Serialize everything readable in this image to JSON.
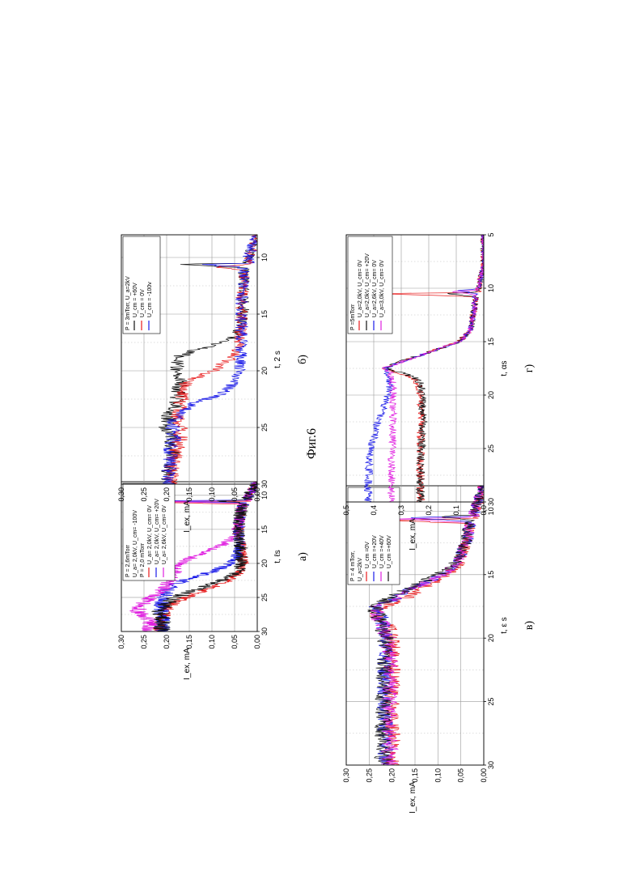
{
  "caption": "Фиг.6",
  "chart_data": [
    {
      "panel_label": "а)",
      "type": "line",
      "xlabel": "t, ℓs",
      "ylabel": "I_ex, mA",
      "xlim": [
        8,
        30
      ],
      "ylim": [
        0,
        0.3
      ],
      "xticks": [
        10,
        15,
        20,
        25,
        30
      ],
      "yticks": [
        "0,00",
        "0,05",
        "0,10",
        "0,15",
        "0,20",
        "0,25",
        "0,30"
      ],
      "grid": true,
      "legend_position": "top-left",
      "legend_header": [
        "P = 2,6mTorr",
        "U_a= 2,0kV, U_cm= -100V",
        "P = 2,0 mTorr"
      ],
      "series": [
        {
          "name": "U_a= 2,0kV, U_cm= 0V",
          "color": "#e8191a",
          "spike": 11,
          "rise": 22.5,
          "plateau": 0.215,
          "noise": 0.012,
          "x": [
            8,
            10,
            10.9,
            11,
            11.3,
            12,
            14,
            16,
            18,
            20,
            21,
            22,
            23,
            24,
            25,
            26,
            27,
            28,
            29,
            30
          ],
          "y": [
            0.0,
            0.02,
            0.02,
            0.25,
            0.03,
            0.035,
            0.04,
            0.04,
            0.035,
            0.03,
            0.035,
            0.05,
            0.08,
            0.12,
            0.16,
            0.19,
            0.205,
            0.21,
            0.215,
            0.215
          ]
        },
        {
          "name": "U_a= 2,0kV, U_cm= +20V",
          "color": "#1a1ae8",
          "spike": 10.8,
          "rise": 21,
          "plateau": 0.21,
          "noise": 0.013,
          "x": [
            8,
            10,
            10.7,
            10.8,
            11.1,
            12,
            14,
            16,
            18,
            19,
            20,
            21,
            22,
            23,
            24,
            25,
            26,
            27,
            28,
            29,
            30
          ],
          "y": [
            0.0,
            0.02,
            0.02,
            0.23,
            0.03,
            0.035,
            0.04,
            0.04,
            0.04,
            0.045,
            0.06,
            0.09,
            0.14,
            0.18,
            0.2,
            0.205,
            0.21,
            0.21,
            0.21,
            0.21,
            0.21
          ]
        },
        {
          "name": "U_a= 2,6kV, U_cm= 0V",
          "color": "#e020e0",
          "spike": 10.9,
          "rise": 19,
          "plateau": 0.25,
          "noise": 0.012,
          "x": [
            8,
            10,
            10.8,
            10.9,
            11.2,
            12,
            14,
            16,
            17,
            18,
            19,
            20,
            21,
            22,
            23,
            24,
            25,
            26,
            27,
            28,
            29,
            30
          ],
          "y": [
            0.0,
            0.02,
            0.02,
            0.24,
            0.03,
            0.035,
            0.04,
            0.05,
            0.07,
            0.1,
            0.14,
            0.17,
            0.18,
            0.19,
            0.2,
            0.21,
            0.235,
            0.255,
            0.265,
            0.245,
            0.235,
            0.24
          ]
        },
        {
          "name": "",
          "color": "#111111",
          "spike": 10.8,
          "rise": 22,
          "plateau": 0.21,
          "noise": 0.014,
          "x": [
            8,
            10,
            10.7,
            10.8,
            11.1,
            12,
            14,
            16,
            18,
            20,
            21,
            22,
            23,
            24,
            25,
            26,
            27,
            28,
            29,
            30
          ],
          "y": [
            0.0,
            0.02,
            0.02,
            0.1,
            0.03,
            0.035,
            0.04,
            0.04,
            0.035,
            0.035,
            0.04,
            0.06,
            0.1,
            0.14,
            0.18,
            0.2,
            0.215,
            0.21,
            0.21,
            0.21
          ]
        }
      ]
    },
    {
      "panel_label": "б)",
      "type": "line",
      "xlabel": "t, 2 s",
      "ylabel": "I_ex, mA",
      "xlim": [
        8,
        30
      ],
      "ylim": [
        0,
        0.3
      ],
      "xticks": [
        10,
        15,
        20,
        25,
        30
      ],
      "yticks": [
        "0,00",
        "0,05",
        "0,10",
        "0,15",
        "0,20",
        "0,25",
        "0,30"
      ],
      "grid": true,
      "legend_position": "top-left",
      "legend_header": [
        "P = 3mTorr, U_a=2kV"
      ],
      "series": [
        {
          "name": "U_cm = +60V",
          "color": "#111111",
          "spike": 10.6,
          "rise": 18.5,
          "plateau": 0.195,
          "noise": 0.013,
          "x": [
            8,
            10,
            10.5,
            10.6,
            10.9,
            12,
            14,
            16,
            17,
            17.5,
            18,
            18.5,
            19,
            20,
            21,
            22,
            23,
            24,
            25,
            26,
            27,
            28,
            29,
            30
          ],
          "y": [
            0.0,
            0.02,
            0.02,
            0.18,
            0.03,
            0.03,
            0.03,
            0.035,
            0.05,
            0.08,
            0.12,
            0.16,
            0.18,
            0.175,
            0.17,
            0.175,
            0.18,
            0.195,
            0.2,
            0.19,
            0.185,
            0.19,
            0.195,
            0.195
          ]
        },
        {
          "name": "U_cm = 0V",
          "color": "#e8191a",
          "spike": 10.8,
          "rise": 21,
          "plateau": 0.19,
          "noise": 0.013,
          "x": [
            8,
            10,
            10.7,
            10.8,
            11.1,
            12,
            14,
            16,
            18,
            19,
            20,
            20.5,
            21,
            22,
            23,
            24,
            25,
            26,
            27,
            28,
            29,
            30
          ],
          "y": [
            0.0,
            0.02,
            0.02,
            0.1,
            0.03,
            0.03,
            0.035,
            0.035,
            0.04,
            0.06,
            0.1,
            0.13,
            0.16,
            0.165,
            0.17,
            0.175,
            0.17,
            0.17,
            0.18,
            0.185,
            0.19,
            0.19
          ]
        },
        {
          "name": "U_cm = -100v",
          "color": "#1a1ae8",
          "spike": 10.6,
          "rise": 23,
          "plateau": 0.195,
          "noise": 0.013,
          "x": [
            8,
            10,
            10.5,
            10.6,
            10.9,
            12,
            14,
            16,
            18,
            20,
            21,
            22,
            22.5,
            23,
            24,
            25,
            26,
            27,
            28,
            29,
            30
          ],
          "y": [
            0.0,
            0.02,
            0.02,
            0.12,
            0.03,
            0.03,
            0.035,
            0.035,
            0.035,
            0.04,
            0.05,
            0.08,
            0.11,
            0.15,
            0.18,
            0.185,
            0.185,
            0.19,
            0.19,
            0.195,
            0.195
          ]
        }
      ]
    },
    {
      "panel_label": "в)",
      "type": "line",
      "xlabel": "t, ε s",
      "ylabel": "I_ex, mA",
      "xlim": [
        8,
        30
      ],
      "ylim": [
        0,
        0.3
      ],
      "xticks": [
        10,
        15,
        20,
        25,
        30
      ],
      "yticks": [
        "0,00",
        "0,05",
        "0,10",
        "0,15",
        "0,20",
        "0,25",
        "0,30"
      ],
      "grid": true,
      "legend_position": "top-left",
      "legend_header": [
        "P = 4 mTorr,",
        "U_a=2kV"
      ],
      "series": [
        {
          "name": "U_cm =0V",
          "color": "#e8191a",
          "spike": 10.7,
          "rise": 18.2,
          "plateau": 0.2,
          "noise": 0.013,
          "x": [
            8,
            10,
            10.6,
            10.7,
            11,
            12,
            13,
            14,
            15,
            16,
            17,
            17.5,
            18,
            18.5,
            19,
            20,
            21,
            22,
            24,
            26,
            28,
            30
          ],
          "y": [
            0.0,
            0.02,
            0.02,
            0.21,
            0.03,
            0.035,
            0.045,
            0.05,
            0.08,
            0.13,
            0.18,
            0.22,
            0.24,
            0.23,
            0.21,
            0.2,
            0.2,
            0.2,
            0.2,
            0.2,
            0.2,
            0.2
          ]
        },
        {
          "name": "U_cm =+20V",
          "color": "#1a1ae8",
          "spike": 10.5,
          "rise": 17.8,
          "plateau": 0.215,
          "noise": 0.013,
          "x": [
            8,
            10,
            10.4,
            10.5,
            10.8,
            12,
            13,
            14,
            15,
            16,
            17,
            17.5,
            18,
            19,
            20,
            21,
            22,
            24,
            26,
            28,
            30
          ],
          "y": [
            0.0,
            0.02,
            0.02,
            0.18,
            0.03,
            0.035,
            0.045,
            0.055,
            0.09,
            0.15,
            0.2,
            0.235,
            0.23,
            0.22,
            0.215,
            0.215,
            0.215,
            0.215,
            0.215,
            0.215,
            0.215
          ]
        },
        {
          "name": "U_cm =+40V",
          "color": "#e020e0",
          "spike": 10.6,
          "rise": 17.8,
          "plateau": 0.205,
          "noise": 0.013,
          "x": [
            8,
            10,
            10.5,
            10.6,
            10.9,
            12,
            13,
            14,
            15,
            16,
            17,
            17.5,
            18,
            19,
            20,
            21,
            22,
            24,
            26,
            28,
            30
          ],
          "y": [
            0.0,
            0.02,
            0.02,
            0.2,
            0.03,
            0.035,
            0.045,
            0.055,
            0.09,
            0.15,
            0.2,
            0.235,
            0.235,
            0.22,
            0.21,
            0.205,
            0.205,
            0.205,
            0.205,
            0.205,
            0.205
          ]
        },
        {
          "name": "U_cm =+60V",
          "color": "#111111",
          "spike": 10.4,
          "rise": 17.6,
          "plateau": 0.22,
          "noise": 0.013,
          "x": [
            8,
            10,
            10.3,
            10.4,
            10.7,
            12,
            13,
            14,
            15,
            16,
            17,
            17.5,
            18,
            19,
            20,
            21,
            22,
            24,
            26,
            28,
            30
          ],
          "y": [
            0.0,
            0.02,
            0.02,
            0.1,
            0.03,
            0.035,
            0.045,
            0.06,
            0.1,
            0.16,
            0.21,
            0.24,
            0.235,
            0.22,
            0.215,
            0.215,
            0.22,
            0.22,
            0.22,
            0.22,
            0.22
          ]
        }
      ]
    },
    {
      "panel_label": "г)",
      "type": "line",
      "xlabel": "t, αs",
      "ylabel": "I_ex, mA",
      "xlim": [
        5,
        30
      ],
      "ylim": [
        0,
        0.5
      ],
      "xticks": [
        5,
        10,
        15,
        20,
        25,
        30
      ],
      "yticks": [
        "0,0",
        "0,1",
        "0,2",
        "0,3",
        "0,4",
        "0,5"
      ],
      "grid": true,
      "legend_position": "top-left",
      "legend_header": [
        "P =5mTorr"
      ],
      "series": [
        {
          "name": "U_a=2,0kV, U_cm= 0V",
          "color": "#e8191a",
          "spike": 10.5,
          "rise": 17.5,
          "plateau": 0.23,
          "noise": 0.012,
          "x": [
            5,
            8,
            10,
            10.4,
            10.5,
            10.8,
            12,
            14,
            15,
            16,
            17,
            17.5,
            18,
            18.5,
            19,
            20,
            22,
            24,
            26,
            28,
            30
          ],
          "y": [
            0.0,
            0.0,
            0.02,
            0.02,
            0.4,
            0.03,
            0.035,
            0.05,
            0.09,
            0.2,
            0.32,
            0.36,
            0.3,
            0.25,
            0.24,
            0.23,
            0.225,
            0.23,
            0.23,
            0.23,
            0.23
          ]
        },
        {
          "name": "U_a=2,0kV, U_cm= +20V",
          "color": "#111111",
          "spike": 10.5,
          "rise": 17.5,
          "plateau": 0.23,
          "noise": 0.012,
          "x": [
            5,
            8,
            10,
            10.4,
            10.5,
            10.8,
            12,
            14,
            15,
            16,
            17,
            17.5,
            18,
            18.5,
            19,
            20,
            22,
            24,
            26,
            28,
            30
          ],
          "y": [
            0.0,
            0.0,
            0.02,
            0.02,
            0.15,
            0.03,
            0.035,
            0.05,
            0.09,
            0.2,
            0.32,
            0.35,
            0.29,
            0.24,
            0.23,
            0.225,
            0.22,
            0.225,
            0.23,
            0.23,
            0.23
          ]
        },
        {
          "name": "U_a=2,6kV, U_cm= 0V",
          "color": "#1a1ae8",
          "spike": 10.2,
          "rise": 17.8,
          "plateau": 0.42,
          "noise": 0.01,
          "x": [
            5,
            8,
            10,
            10.1,
            10.2,
            10.5,
            12,
            14,
            15,
            16,
            17,
            17.5,
            18,
            19,
            20,
            21,
            22,
            23,
            24,
            25,
            26,
            28,
            30
          ],
          "y": [
            0.0,
            0.0,
            0.02,
            0.02,
            0.1,
            0.03,
            0.035,
            0.05,
            0.09,
            0.2,
            0.31,
            0.36,
            0.35,
            0.34,
            0.35,
            0.36,
            0.38,
            0.39,
            0.4,
            0.41,
            0.415,
            0.42,
            0.42
          ]
        },
        {
          "name": "U_a=3,0kV, U_cm= 0V",
          "color": "#e020e0",
          "spike": 10.3,
          "rise": 17.8,
          "plateau": 0.33,
          "noise": 0.01,
          "x": [
            5,
            8,
            10,
            10.2,
            10.3,
            10.6,
            12,
            14,
            15,
            16,
            17,
            17.5,
            18,
            19,
            20,
            22,
            24,
            26,
            28,
            30
          ],
          "y": [
            0.0,
            0.0,
            0.02,
            0.02,
            0.12,
            0.03,
            0.035,
            0.05,
            0.09,
            0.2,
            0.31,
            0.36,
            0.34,
            0.33,
            0.33,
            0.33,
            0.33,
            0.335,
            0.335,
            0.335
          ]
        }
      ]
    }
  ]
}
